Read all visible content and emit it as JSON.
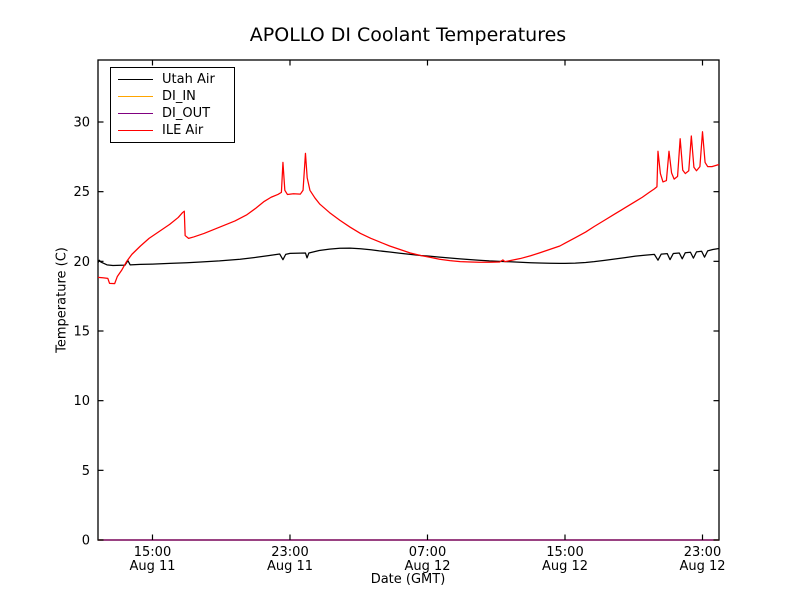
{
  "figure": {
    "title": "APOLLO DI Coolant Temperatures",
    "xlabel": "Date (GMT)",
    "ylabel": "Temperature (C)",
    "background": "#ffffff",
    "axis_color": "#000000"
  },
  "legend": {
    "entries": [
      {
        "label": "Utah Air",
        "color": "#000000"
      },
      {
        "label": "DI_IN",
        "color": "#ffa500"
      },
      {
        "label": "DI_OUT",
        "color": "#800080"
      },
      {
        "label": "ILE Air",
        "color": "#ff0000"
      }
    ]
  },
  "chart_data": {
    "type": "line",
    "title": "APOLLO DI Coolant Temperatures",
    "xlabel": "Date (GMT)",
    "ylabel": "Temperature (C)",
    "x_unit": "hours since Aug 11 00:00 GMT",
    "xlim": [
      11.83,
      47.96
    ],
    "ylim": [
      0,
      34.45
    ],
    "grid": false,
    "legend_position": "upper left",
    "yticks": [
      0,
      5,
      10,
      15,
      20,
      25,
      30
    ],
    "xticks": [
      {
        "value": 15,
        "time": "15:00",
        "date": "Aug 11"
      },
      {
        "value": 23,
        "time": "23:00",
        "date": "Aug 11"
      },
      {
        "value": 31,
        "time": "07:00",
        "date": "Aug 12"
      },
      {
        "value": 39,
        "time": "15:00",
        "date": "Aug 12"
      },
      {
        "value": 47,
        "time": "23:00",
        "date": "Aug 12"
      }
    ],
    "series": [
      {
        "name": "Utah Air",
        "color": "#000000",
        "points": [
          [
            11.83,
            19.9
          ],
          [
            11.9,
            20.08
          ],
          [
            12.0,
            19.95
          ],
          [
            12.35,
            19.75
          ],
          [
            12.7,
            19.7
          ],
          [
            13.4,
            19.73
          ],
          [
            13.57,
            20.05
          ],
          [
            13.7,
            19.75
          ],
          [
            14.3,
            19.78
          ],
          [
            15.0,
            19.8
          ],
          [
            16.0,
            19.85
          ],
          [
            17.0,
            19.9
          ],
          [
            17.8,
            19.95
          ],
          [
            18.9,
            20.03
          ],
          [
            20.1,
            20.15
          ],
          [
            21.0,
            20.28
          ],
          [
            21.8,
            20.42
          ],
          [
            22.4,
            20.53
          ],
          [
            22.59,
            20.12
          ],
          [
            22.75,
            20.5
          ],
          [
            23.0,
            20.57
          ],
          [
            23.9,
            20.6
          ],
          [
            23.99,
            20.25
          ],
          [
            24.1,
            20.6
          ],
          [
            24.7,
            20.78
          ],
          [
            25.3,
            20.88
          ],
          [
            25.9,
            20.94
          ],
          [
            26.5,
            20.95
          ],
          [
            27.1,
            20.9
          ],
          [
            27.7,
            20.83
          ],
          [
            28.2,
            20.75
          ],
          [
            28.8,
            20.67
          ],
          [
            29.4,
            20.58
          ],
          [
            30.0,
            20.5
          ],
          [
            30.6,
            20.42
          ],
          [
            31.1,
            20.37
          ],
          [
            31.7,
            20.3
          ],
          [
            32.3,
            20.24
          ],
          [
            32.9,
            20.18
          ],
          [
            33.5,
            20.12
          ],
          [
            34.0,
            20.08
          ],
          [
            34.6,
            20.03
          ],
          [
            35.2,
            20.0
          ],
          [
            35.8,
            19.97
          ],
          [
            36.4,
            19.93
          ],
          [
            37.0,
            19.9
          ],
          [
            37.5,
            19.88
          ],
          [
            38.1,
            19.86
          ],
          [
            38.7,
            19.85
          ],
          [
            39.0,
            19.85
          ],
          [
            39.6,
            19.87
          ],
          [
            40.2,
            19.92
          ],
          [
            40.7,
            19.98
          ],
          [
            41.3,
            20.07
          ],
          [
            41.9,
            20.17
          ],
          [
            42.5,
            20.27
          ],
          [
            43.1,
            20.37
          ],
          [
            43.7,
            20.45
          ],
          [
            44.2,
            20.5
          ],
          [
            44.41,
            20.08
          ],
          [
            44.6,
            20.52
          ],
          [
            44.95,
            20.55
          ],
          [
            45.11,
            20.12
          ],
          [
            45.3,
            20.56
          ],
          [
            45.65,
            20.6
          ],
          [
            45.82,
            20.18
          ],
          [
            46.0,
            20.62
          ],
          [
            46.3,
            20.65
          ],
          [
            46.47,
            20.23
          ],
          [
            46.65,
            20.68
          ],
          [
            46.95,
            20.72
          ],
          [
            47.12,
            20.3
          ],
          [
            47.3,
            20.75
          ],
          [
            47.6,
            20.85
          ],
          [
            47.96,
            20.92
          ]
        ]
      },
      {
        "name": "DI_IN",
        "color": "#ffa500",
        "points": [
          [
            11.83,
            0
          ],
          [
            47.96,
            0
          ]
        ]
      },
      {
        "name": "DI_OUT",
        "color": "#800080",
        "points": [
          [
            11.83,
            0
          ],
          [
            47.96,
            0
          ]
        ]
      },
      {
        "name": "ILE Air",
        "color": "#ff0000",
        "points": [
          [
            11.83,
            18.85
          ],
          [
            12.1,
            18.82
          ],
          [
            12.4,
            18.78
          ],
          [
            12.5,
            18.42
          ],
          [
            12.8,
            18.4
          ],
          [
            12.95,
            18.9
          ],
          [
            13.2,
            19.35
          ],
          [
            13.5,
            20.0
          ],
          [
            13.8,
            20.5
          ],
          [
            14.3,
            21.1
          ],
          [
            14.8,
            21.65
          ],
          [
            15.4,
            22.15
          ],
          [
            16.0,
            22.65
          ],
          [
            16.5,
            23.15
          ],
          [
            16.75,
            23.5
          ],
          [
            16.85,
            23.6
          ],
          [
            16.9,
            21.85
          ],
          [
            17.1,
            21.65
          ],
          [
            17.4,
            21.75
          ],
          [
            18.0,
            22.0
          ],
          [
            18.9,
            22.45
          ],
          [
            19.8,
            22.9
          ],
          [
            20.5,
            23.35
          ],
          [
            21.0,
            23.8
          ],
          [
            21.5,
            24.3
          ],
          [
            21.9,
            24.6
          ],
          [
            22.3,
            24.8
          ],
          [
            22.5,
            24.95
          ],
          [
            22.59,
            27.1
          ],
          [
            22.7,
            25.1
          ],
          [
            22.85,
            24.8
          ],
          [
            23.2,
            24.85
          ],
          [
            23.6,
            24.82
          ],
          [
            23.76,
            25.1
          ],
          [
            23.9,
            27.75
          ],
          [
            24.0,
            26.0
          ],
          [
            24.16,
            25.1
          ],
          [
            24.45,
            24.55
          ],
          [
            24.74,
            24.1
          ],
          [
            25.3,
            23.5
          ],
          [
            25.9,
            22.95
          ],
          [
            26.5,
            22.45
          ],
          [
            27.1,
            22.0
          ],
          [
            27.7,
            21.65
          ],
          [
            28.2,
            21.4
          ],
          [
            28.8,
            21.1
          ],
          [
            29.4,
            20.85
          ],
          [
            30.0,
            20.6
          ],
          [
            30.6,
            20.42
          ],
          [
            31.1,
            20.3
          ],
          [
            31.7,
            20.15
          ],
          [
            32.3,
            20.05
          ],
          [
            32.9,
            19.98
          ],
          [
            33.5,
            19.95
          ],
          [
            34.0,
            19.93
          ],
          [
            34.6,
            19.93
          ],
          [
            35.2,
            19.95
          ],
          [
            35.39,
            20.1
          ],
          [
            35.5,
            19.98
          ],
          [
            35.8,
            20.05
          ],
          [
            36.4,
            20.2
          ],
          [
            37.0,
            20.4
          ],
          [
            37.5,
            20.6
          ],
          [
            38.1,
            20.85
          ],
          [
            38.7,
            21.1
          ],
          [
            39.0,
            21.3
          ],
          [
            39.6,
            21.7
          ],
          [
            40.2,
            22.1
          ],
          [
            40.7,
            22.5
          ],
          [
            41.3,
            22.95
          ],
          [
            41.9,
            23.4
          ],
          [
            42.3,
            23.7
          ],
          [
            42.5,
            23.85
          ],
          [
            43.1,
            24.3
          ],
          [
            43.5,
            24.6
          ],
          [
            43.9,
            24.95
          ],
          [
            44.2,
            25.2
          ],
          [
            44.35,
            25.35
          ],
          [
            44.41,
            27.9
          ],
          [
            44.55,
            26.3
          ],
          [
            44.7,
            25.7
          ],
          [
            44.9,
            25.8
          ],
          [
            45.05,
            27.9
          ],
          [
            45.2,
            26.35
          ],
          [
            45.35,
            25.9
          ],
          [
            45.55,
            26.1
          ],
          [
            45.7,
            28.8
          ],
          [
            45.85,
            26.55
          ],
          [
            46.0,
            26.3
          ],
          [
            46.2,
            26.5
          ],
          [
            46.35,
            29.0
          ],
          [
            46.5,
            26.75
          ],
          [
            46.65,
            26.5
          ],
          [
            46.85,
            26.8
          ],
          [
            47.0,
            29.3
          ],
          [
            47.15,
            27.1
          ],
          [
            47.3,
            26.8
          ],
          [
            47.55,
            26.8
          ],
          [
            47.96,
            26.95
          ]
        ]
      }
    ]
  }
}
